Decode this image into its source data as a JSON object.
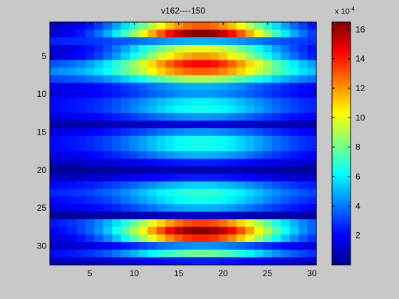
{
  "chart_data": {
    "type": "heatmap",
    "title": "v162----150",
    "x_ticks": [
      5,
      10,
      15,
      20,
      25,
      30
    ],
    "y_ticks": [
      5,
      10,
      15,
      20,
      25,
      30
    ],
    "x_range": [
      1,
      30
    ],
    "y_range": [
      1,
      32
    ],
    "y_reversed": true,
    "colormap": "jet",
    "colorbar": {
      "multiplier_prefix": "x 10",
      "multiplier_exponent": "-4",
      "ticks": [
        2,
        4,
        6,
        8,
        10,
        12,
        14,
        16
      ],
      "range": [
        0,
        16.5
      ]
    },
    "row_profiles": [
      {
        "row": 1,
        "peak": 13.0,
        "floor": 0.6
      },
      {
        "row": 2,
        "peak": 16.5,
        "floor": 0.8
      },
      {
        "row": 3,
        "peak": 5.0,
        "floor": 2.5
      },
      {
        "row": 4,
        "peak": 10.0,
        "floor": 1.0
      },
      {
        "row": 5,
        "peak": 12.0,
        "floor": 1.0
      },
      {
        "row": 6,
        "peak": 14.5,
        "floor": 3.0
      },
      {
        "row": 7,
        "peak": 13.0,
        "floor": 4.0
      },
      {
        "row": 8,
        "peak": 9.0,
        "floor": 3.0
      },
      {
        "row": 9,
        "peak": 5.0,
        "floor": 1.5
      },
      {
        "row": 10,
        "peak": 4.5,
        "floor": 1.5
      },
      {
        "row": 11,
        "peak": 6.0,
        "floor": 2.0
      },
      {
        "row": 12,
        "peak": 6.5,
        "floor": 2.0
      },
      {
        "row": 13,
        "peak": 4.5,
        "floor": 1.5
      },
      {
        "row": 14,
        "peak": 1.5,
        "floor": 0.5
      },
      {
        "row": 15,
        "peak": 4.5,
        "floor": 1.5
      },
      {
        "row": 16,
        "peak": 6.5,
        "floor": 2.0
      },
      {
        "row": 17,
        "peak": 6.5,
        "floor": 2.0
      },
      {
        "row": 18,
        "peak": 5.0,
        "floor": 1.5
      },
      {
        "row": 19,
        "peak": 2.5,
        "floor": 1.0
      },
      {
        "row": 20,
        "peak": 0.8,
        "floor": 0.3
      },
      {
        "row": 21,
        "peak": 2.5,
        "floor": 1.0
      },
      {
        "row": 22,
        "peak": 5.5,
        "floor": 2.0
      },
      {
        "row": 23,
        "peak": 7.0,
        "floor": 2.5
      },
      {
        "row": 24,
        "peak": 6.5,
        "floor": 2.0
      },
      {
        "row": 25,
        "peak": 5.0,
        "floor": 1.5
      },
      {
        "row": 26,
        "peak": 1.2,
        "floor": 0.4
      },
      {
        "row": 27,
        "peak": 13.5,
        "floor": 2.0
      },
      {
        "row": 28,
        "peak": 16.5,
        "floor": 1.5
      },
      {
        "row": 29,
        "peak": 14.0,
        "floor": 1.0
      },
      {
        "row": 30,
        "peak": 4.5,
        "floor": 1.0
      },
      {
        "row": 31,
        "peak": 8.0,
        "floor": 2.0
      },
      {
        "row": 32,
        "peak": 2.5,
        "floor": 1.0
      }
    ]
  }
}
